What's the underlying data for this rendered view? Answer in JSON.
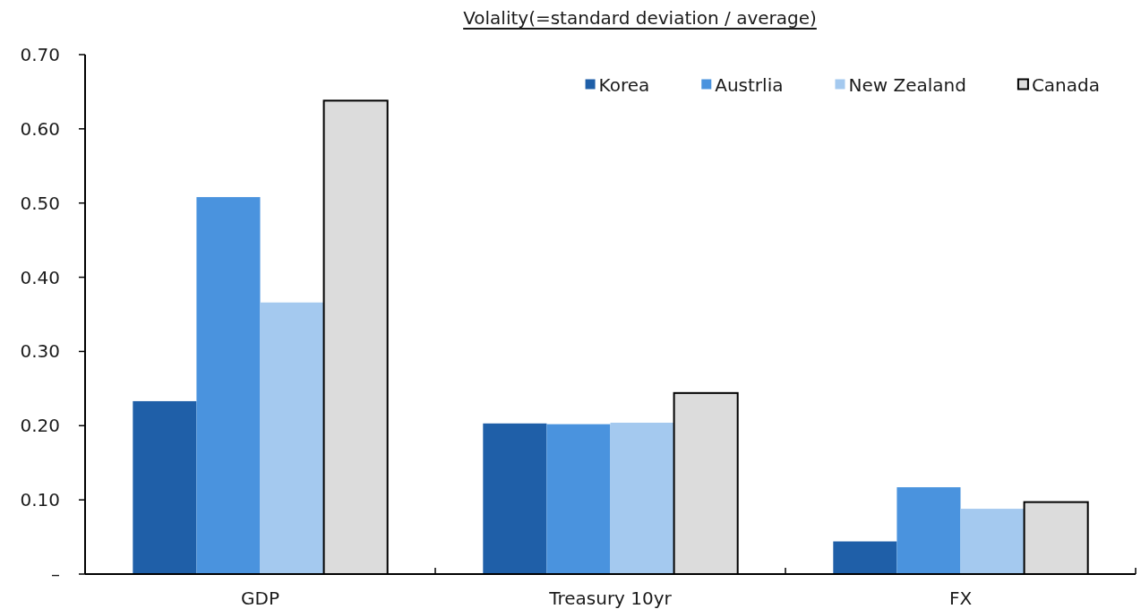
{
  "chart_data": {
    "type": "bar",
    "title": "Volality(=standard deviation / average)",
    "categories": [
      "GDP",
      "Treasury 10yr",
      "FX"
    ],
    "series": [
      {
        "name": "Korea",
        "color": "#1f5fa8",
        "values": [
          0.233,
          0.203,
          0.044
        ]
      },
      {
        "name": "Austrlia",
        "color": "#4a93de",
        "values": [
          0.508,
          0.202,
          0.117
        ]
      },
      {
        "name": "New Zealand",
        "color": "#a4c9ef",
        "values": [
          0.366,
          0.204,
          0.088
        ]
      },
      {
        "name": "Canada",
        "color": "#dcdcdc",
        "values": [
          0.638,
          0.244,
          0.097
        ]
      }
    ],
    "ylim": [
      0,
      0.7
    ],
    "yticks": [
      {
        "value": 0,
        "label": "–"
      },
      {
        "value": 0.1,
        "label": "0.10"
      },
      {
        "value": 0.2,
        "label": "0.20"
      },
      {
        "value": 0.3,
        "label": "0.30"
      },
      {
        "value": 0.4,
        "label": "0.40"
      },
      {
        "value": 0.5,
        "label": "0.50"
      },
      {
        "value": 0.6,
        "label": "0.60"
      },
      {
        "value": 0.7,
        "label": "0.70"
      }
    ],
    "legend": "top right"
  }
}
